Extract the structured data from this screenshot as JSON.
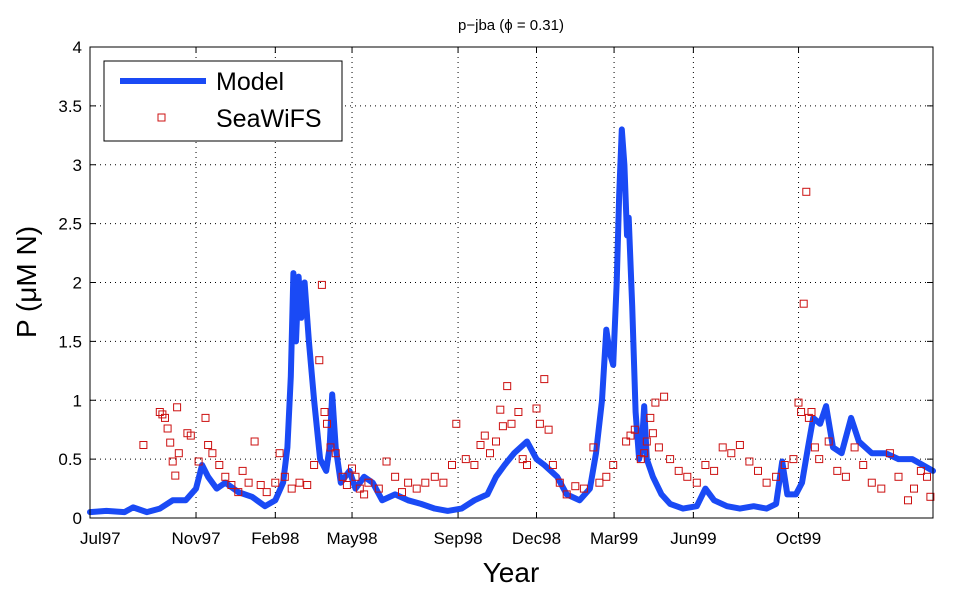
{
  "chart_data": {
    "type": "line",
    "title": "p−jba (ϕ = 0.31)",
    "xlabel": "Year",
    "ylabel": "P (μM N)",
    "xlim": [
      "1997-07-01",
      "2000-03-05"
    ],
    "ylim": [
      0,
      4
    ],
    "yticks": [
      "0",
      "0.5",
      "1",
      "1.5",
      "2",
      "2.5",
      "3",
      "3.5",
      "4"
    ],
    "xticks": [
      {
        "date": "1997-07-01",
        "label": "Jul97"
      },
      {
        "date": "1997-11-01",
        "label": "Nov97"
      },
      {
        "date": "1998-02-01",
        "label": "Feb98"
      },
      {
        "date": "1998-05-01",
        "label": "May98"
      },
      {
        "date": "1998-09-01",
        "label": "Sep98"
      },
      {
        "date": "1998-12-01",
        "label": "Dec98"
      },
      {
        "date": "1999-03-01",
        "label": "Mar99"
      },
      {
        "date": "1999-06-01",
        "label": "Jun99"
      },
      {
        "date": "1999-10-01",
        "label": "Oct99"
      }
    ],
    "grid": true,
    "legend_position": "top-left",
    "series": [
      {
        "name": "Model",
        "style": "line",
        "color": "#1a4af5",
        "points": [
          [
            "1997-07-01",
            0.05
          ],
          [
            "1997-07-20",
            0.06
          ],
          [
            "1997-08-10",
            0.05
          ],
          [
            "1997-08-20",
            0.09
          ],
          [
            "1997-09-05",
            0.05
          ],
          [
            "1997-09-20",
            0.08
          ],
          [
            "1997-10-05",
            0.15
          ],
          [
            "1997-10-20",
            0.15
          ],
          [
            "1997-11-01",
            0.25
          ],
          [
            "1997-11-08",
            0.45
          ],
          [
            "1997-11-15",
            0.35
          ],
          [
            "1997-11-25",
            0.25
          ],
          [
            "1997-12-05",
            0.3
          ],
          [
            "1997-12-20",
            0.22
          ],
          [
            "1998-01-05",
            0.18
          ],
          [
            "1998-01-20",
            0.1
          ],
          [
            "1998-02-01",
            0.15
          ],
          [
            "1998-02-10",
            0.3
          ],
          [
            "1998-02-15",
            0.6
          ],
          [
            "1998-02-19",
            1.2
          ],
          [
            "1998-02-22",
            2.08
          ],
          [
            "1998-02-25",
            1.5
          ],
          [
            "1998-02-28",
            2.05
          ],
          [
            "1998-03-03",
            1.7
          ],
          [
            "1998-03-07",
            2.0
          ],
          [
            "1998-03-12",
            1.5
          ],
          [
            "1998-03-18",
            1.0
          ],
          [
            "1998-03-25",
            0.5
          ],
          [
            "1998-04-01",
            0.4
          ],
          [
            "1998-04-05",
            0.6
          ],
          [
            "1998-04-08",
            1.05
          ],
          [
            "1998-04-12",
            0.6
          ],
          [
            "1998-04-18",
            0.3
          ],
          [
            "1998-04-28",
            0.4
          ],
          [
            "1998-05-05",
            0.25
          ],
          [
            "1998-05-15",
            0.35
          ],
          [
            "1998-05-25",
            0.3
          ],
          [
            "1998-06-05",
            0.15
          ],
          [
            "1998-06-20",
            0.2
          ],
          [
            "1998-07-05",
            0.15
          ],
          [
            "1998-07-20",
            0.12
          ],
          [
            "1998-08-05",
            0.08
          ],
          [
            "1998-08-20",
            0.06
          ],
          [
            "1998-09-05",
            0.08
          ],
          [
            "1998-09-20",
            0.15
          ],
          [
            "1998-10-05",
            0.2
          ],
          [
            "1998-10-15",
            0.35
          ],
          [
            "1998-10-25",
            0.45
          ],
          [
            "1998-11-05",
            0.55
          ],
          [
            "1998-11-20",
            0.65
          ],
          [
            "1998-12-01",
            0.5
          ],
          [
            "1998-12-10",
            0.45
          ],
          [
            "1998-12-25",
            0.35
          ],
          [
            "1999-01-05",
            0.2
          ],
          [
            "1999-01-20",
            0.15
          ],
          [
            "1999-02-01",
            0.25
          ],
          [
            "1999-02-08",
            0.55
          ],
          [
            "1999-02-15",
            1.0
          ],
          [
            "1999-02-20",
            1.6
          ],
          [
            "1999-02-24",
            1.4
          ],
          [
            "1999-02-28",
            1.3
          ],
          [
            "1999-03-04",
            2.0
          ],
          [
            "1999-03-07",
            2.75
          ],
          [
            "1999-03-10",
            3.3
          ],
          [
            "1999-03-13",
            3.0
          ],
          [
            "1999-03-16",
            2.4
          ],
          [
            "1999-03-18",
            2.55
          ],
          [
            "1999-03-22",
            1.8
          ],
          [
            "1999-03-26",
            0.9
          ],
          [
            "1999-03-30",
            0.5
          ],
          [
            "1999-04-02",
            0.6
          ],
          [
            "1999-04-05",
            0.95
          ],
          [
            "1999-04-08",
            0.5
          ],
          [
            "1999-04-15",
            0.35
          ],
          [
            "1999-04-25",
            0.2
          ],
          [
            "1999-05-05",
            0.12
          ],
          [
            "1999-05-20",
            0.08
          ],
          [
            "1999-06-05",
            0.1
          ],
          [
            "1999-06-15",
            0.25
          ],
          [
            "1999-06-25",
            0.15
          ],
          [
            "1999-07-10",
            0.1
          ],
          [
            "1999-07-25",
            0.08
          ],
          [
            "1999-08-10",
            0.1
          ],
          [
            "1999-08-25",
            0.08
          ],
          [
            "1999-09-05",
            0.12
          ],
          [
            "1999-09-12",
            0.48
          ],
          [
            "1999-09-18",
            0.2
          ],
          [
            "1999-09-28",
            0.2
          ],
          [
            "1999-10-05",
            0.3
          ],
          [
            "1999-10-12",
            0.6
          ],
          [
            "1999-10-18",
            0.85
          ],
          [
            "1999-10-26",
            0.8
          ],
          [
            "1999-11-02",
            0.95
          ],
          [
            "1999-11-10",
            0.6
          ],
          [
            "1999-11-20",
            0.55
          ],
          [
            "1999-12-01",
            0.85
          ],
          [
            "1999-12-10",
            0.65
          ],
          [
            "1999-12-25",
            0.55
          ],
          [
            "2000-01-10",
            0.55
          ],
          [
            "2000-01-25",
            0.5
          ],
          [
            "2000-02-10",
            0.5
          ],
          [
            "2000-03-05",
            0.4
          ]
        ]
      },
      {
        "name": "SeaWiFS",
        "style": "markers",
        "color": "#cc1111",
        "points": [
          [
            "1997-09-01",
            0.62
          ],
          [
            "1997-09-20",
            0.9
          ],
          [
            "1997-09-23",
            0.88
          ],
          [
            "1997-09-26",
            0.85
          ],
          [
            "1997-09-29",
            0.76
          ],
          [
            "1997-10-02",
            0.64
          ],
          [
            "1997-10-05",
            0.48
          ],
          [
            "1997-10-08",
            0.36
          ],
          [
            "1997-10-10",
            0.94
          ],
          [
            "1997-10-12",
            0.55
          ],
          [
            "1997-10-22",
            0.72
          ],
          [
            "1997-10-26",
            0.7
          ],
          [
            "1997-11-04",
            0.48
          ],
          [
            "1997-11-12",
            0.85
          ],
          [
            "1997-11-15",
            0.62
          ],
          [
            "1997-11-20",
            0.55
          ],
          [
            "1997-11-28",
            0.45
          ],
          [
            "1997-12-05",
            0.35
          ],
          [
            "1997-12-12",
            0.28
          ],
          [
            "1997-12-20",
            0.22
          ],
          [
            "1997-12-25",
            0.4
          ],
          [
            "1998-01-01",
            0.3
          ],
          [
            "1998-01-08",
            0.65
          ],
          [
            "1998-01-15",
            0.28
          ],
          [
            "1998-01-22",
            0.22
          ],
          [
            "1998-02-01",
            0.3
          ],
          [
            "1998-02-06",
            0.55
          ],
          [
            "1998-02-12",
            0.35
          ],
          [
            "1998-02-20",
            0.25
          ],
          [
            "1998-03-01",
            0.3
          ],
          [
            "1998-03-10",
            0.28
          ],
          [
            "1998-03-18",
            0.45
          ],
          [
            "1998-03-24",
            1.34
          ],
          [
            "1998-03-27",
            1.98
          ],
          [
            "1998-03-30",
            0.9
          ],
          [
            "1998-04-02",
            0.8
          ],
          [
            "1998-04-06",
            0.6
          ],
          [
            "1998-04-12",
            0.55
          ],
          [
            "1998-04-20",
            0.35
          ],
          [
            "1998-04-25",
            0.28
          ],
          [
            "1998-05-01",
            0.42
          ],
          [
            "1998-05-05",
            0.35
          ],
          [
            "1998-05-10",
            0.25
          ],
          [
            "1998-05-15",
            0.2
          ],
          [
            "1998-05-20",
            0.3
          ],
          [
            "1998-06-01",
            0.25
          ],
          [
            "1998-06-10",
            0.48
          ],
          [
            "1998-06-20",
            0.35
          ],
          [
            "1998-06-28",
            0.22
          ],
          [
            "1998-07-05",
            0.3
          ],
          [
            "1998-07-15",
            0.25
          ],
          [
            "1998-07-25",
            0.3
          ],
          [
            "1998-08-05",
            0.35
          ],
          [
            "1998-08-15",
            0.3
          ],
          [
            "1998-08-25",
            0.45
          ],
          [
            "1998-08-30",
            0.8
          ],
          [
            "1998-09-10",
            0.5
          ],
          [
            "1998-09-20",
            0.45
          ],
          [
            "1998-09-27",
            0.62
          ],
          [
            "1998-10-02",
            0.7
          ],
          [
            "1998-10-08",
            0.55
          ],
          [
            "1998-10-15",
            0.65
          ],
          [
            "1998-10-20",
            0.92
          ],
          [
            "1998-10-23",
            0.78
          ],
          [
            "1998-10-28",
            1.12
          ],
          [
            "1998-11-02",
            0.8
          ],
          [
            "1998-11-10",
            0.9
          ],
          [
            "1998-11-15",
            0.5
          ],
          [
            "1998-11-20",
            0.45
          ],
          [
            "1998-12-01",
            0.93
          ],
          [
            "1998-12-05",
            0.8
          ],
          [
            "1998-12-10",
            1.18
          ],
          [
            "1998-12-15",
            0.75
          ],
          [
            "1998-12-20",
            0.45
          ],
          [
            "1998-12-28",
            0.3
          ],
          [
            "1999-01-05",
            0.2
          ],
          [
            "1999-01-15",
            0.27
          ],
          [
            "1999-01-25",
            0.25
          ],
          [
            "1999-02-05",
            0.6
          ],
          [
            "1999-02-12",
            0.3
          ],
          [
            "1999-02-20",
            0.35
          ],
          [
            "1999-02-28",
            0.45
          ],
          [
            "1999-03-15",
            0.65
          ],
          [
            "1999-03-20",
            0.7
          ],
          [
            "1999-03-25",
            0.75
          ],
          [
            "1999-04-01",
            0.5
          ],
          [
            "1999-04-05",
            0.55
          ],
          [
            "1999-04-08",
            0.65
          ],
          [
            "1999-04-12",
            0.85
          ],
          [
            "1999-04-15",
            0.72
          ],
          [
            "1999-04-18",
            0.98
          ],
          [
            "1999-04-22",
            0.6
          ],
          [
            "1999-04-28",
            1.03
          ],
          [
            "1999-05-05",
            0.5
          ],
          [
            "1999-05-15",
            0.4
          ],
          [
            "1999-05-25",
            0.35
          ],
          [
            "1999-06-05",
            0.3
          ],
          [
            "1999-06-15",
            0.45
          ],
          [
            "1999-06-25",
            0.4
          ],
          [
            "1999-07-05",
            0.6
          ],
          [
            "1999-07-15",
            0.55
          ],
          [
            "1999-07-25",
            0.62
          ],
          [
            "1999-08-05",
            0.48
          ],
          [
            "1999-08-15",
            0.4
          ],
          [
            "1999-08-25",
            0.3
          ],
          [
            "1999-09-05",
            0.35
          ],
          [
            "1999-09-15",
            0.45
          ],
          [
            "1999-09-25",
            0.5
          ],
          [
            "1999-10-01",
            0.98
          ],
          [
            "1999-10-04",
            0.9
          ],
          [
            "1999-10-07",
            1.82
          ],
          [
            "1999-10-10",
            2.77
          ],
          [
            "1999-10-13",
            0.85
          ],
          [
            "1999-10-16",
            0.9
          ],
          [
            "1999-10-20",
            0.6
          ],
          [
            "1999-10-25",
            0.5
          ],
          [
            "1999-11-05",
            0.65
          ],
          [
            "1999-11-15",
            0.4
          ],
          [
            "1999-11-25",
            0.35
          ],
          [
            "1999-12-05",
            0.6
          ],
          [
            "1999-12-15",
            0.45
          ],
          [
            "1999-12-25",
            0.3
          ],
          [
            "2000-01-05",
            0.25
          ],
          [
            "2000-01-15",
            0.55
          ],
          [
            "2000-01-25",
            0.35
          ],
          [
            "2000-02-05",
            0.15
          ],
          [
            "2000-02-12",
            0.25
          ],
          [
            "2000-02-20",
            0.4
          ],
          [
            "2000-02-27",
            0.35
          ],
          [
            "2000-03-02",
            0.18
          ]
        ]
      }
    ]
  }
}
